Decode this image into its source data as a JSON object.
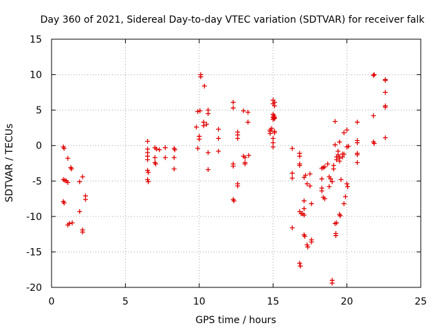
{
  "chart_data": {
    "type": "scatter",
    "title": "Day 360 of 2021, Sidereal Day-to-day VTEC variation (SDTVAR) for receiver falk",
    "xlabel": "GPS time / hours",
    "ylabel": "SDTVAR / TECUs",
    "xlim": [
      0,
      25
    ],
    "ylim": [
      -20,
      15
    ],
    "xticks": [
      0,
      5,
      10,
      15,
      20,
      25
    ],
    "yticks": [
      -20,
      -15,
      -10,
      -5,
      0,
      5,
      10,
      15
    ],
    "xtick_labels": [
      "0",
      "5",
      "10",
      "15",
      "20",
      "25"
    ],
    "ytick_labels": [
      "-20",
      "-15",
      "-10",
      "-5",
      "0",
      "5",
      "10",
      "15"
    ],
    "grid": true,
    "marker": "+",
    "color": "#e00000",
    "series": [
      {
        "name": "SDTVAR",
        "points": [
          [
            0.8,
            -0.2
          ],
          [
            0.85,
            -0.4
          ],
          [
            0.8,
            -4.8
          ],
          [
            0.9,
            -4.9
          ],
          [
            0.8,
            -7.9
          ],
          [
            0.85,
            -8.1
          ],
          [
            1.0,
            -5.0
          ],
          [
            1.1,
            -5.2
          ],
          [
            1.1,
            -1.8
          ],
          [
            1.1,
            -11.2
          ],
          [
            1.2,
            -11.0
          ],
          [
            1.3,
            -3.1
          ],
          [
            1.35,
            -3.3
          ],
          [
            1.4,
            -10.9
          ],
          [
            1.9,
            -5.1
          ],
          [
            1.9,
            -9.3
          ],
          [
            2.1,
            -4.4
          ],
          [
            2.1,
            -11.9
          ],
          [
            2.1,
            -12.2
          ],
          [
            2.3,
            -7.1
          ],
          [
            2.3,
            -7.6
          ],
          [
            6.5,
            0.6
          ],
          [
            6.5,
            -0.5
          ],
          [
            6.5,
            -1.0
          ],
          [
            6.5,
            -1.5
          ],
          [
            6.5,
            -2.0
          ],
          [
            6.5,
            -3.5
          ],
          [
            6.55,
            -3.8
          ],
          [
            6.5,
            -4.8
          ],
          [
            6.55,
            -5.1
          ],
          [
            7.0,
            -0.3
          ],
          [
            7.1,
            -0.5
          ],
          [
            7.0,
            -1.7
          ],
          [
            7.0,
            -2.4
          ],
          [
            7.05,
            -2.6
          ],
          [
            7.3,
            -0.6
          ],
          [
            7.7,
            -0.3
          ],
          [
            7.7,
            -1.7
          ],
          [
            8.3,
            -0.4
          ],
          [
            8.35,
            -0.6
          ],
          [
            8.3,
            -1.7
          ],
          [
            8.3,
            -3.3
          ],
          [
            9.8,
            2.6
          ],
          [
            9.9,
            4.8
          ],
          [
            9.9,
            -0.4
          ],
          [
            10.0,
            0.9
          ],
          [
            10.0,
            1.3
          ],
          [
            10.05,
            4.9
          ],
          [
            10.1,
            9.7
          ],
          [
            10.1,
            10.0
          ],
          [
            10.3,
            2.8
          ],
          [
            10.3,
            3.3
          ],
          [
            10.35,
            8.4
          ],
          [
            10.5,
            3.0
          ],
          [
            10.6,
            5.0
          ],
          [
            10.6,
            4.5
          ],
          [
            10.6,
            -3.4
          ],
          [
            10.6,
            -1.0
          ],
          [
            11.3,
            2.3
          ],
          [
            11.3,
            -0.8
          ],
          [
            11.3,
            1.0
          ],
          [
            12.3,
            6.1
          ],
          [
            12.3,
            5.3
          ],
          [
            12.3,
            -2.6
          ],
          [
            12.3,
            -2.9
          ],
          [
            12.3,
            -7.6
          ],
          [
            12.35,
            -7.8
          ],
          [
            12.6,
            -5.4
          ],
          [
            12.6,
            -5.7
          ],
          [
            12.6,
            1.5
          ],
          [
            12.6,
            1.0
          ],
          [
            12.6,
            1.9
          ],
          [
            13.0,
            4.9
          ],
          [
            13.0,
            -1.5
          ],
          [
            13.1,
            -1.7
          ],
          [
            13.1,
            -2.4
          ],
          [
            13.1,
            -2.6
          ],
          [
            13.3,
            4.7
          ],
          [
            13.3,
            3.3
          ],
          [
            13.35,
            -1.4
          ],
          [
            14.8,
            2.2
          ],
          [
            14.8,
            2.0
          ],
          [
            14.8,
            1.7
          ],
          [
            14.9,
            2.4
          ],
          [
            15.0,
            6.4
          ],
          [
            15.0,
            5.9
          ],
          [
            15.0,
            4.4
          ],
          [
            15.0,
            4.0
          ],
          [
            15.0,
            3.7
          ],
          [
            15.05,
            4.2
          ],
          [
            15.05,
            3.9
          ],
          [
            15.1,
            6.1
          ],
          [
            15.1,
            5.6
          ],
          [
            15.0,
            1.0
          ],
          [
            15.0,
            0.4
          ],
          [
            15.0,
            -0.2
          ],
          [
            15.1,
            2.0
          ],
          [
            15.1,
            1.8
          ],
          [
            15.1,
            4.0
          ],
          [
            15.1,
            3.8
          ],
          [
            16.3,
            -0.4
          ],
          [
            16.3,
            -3.9
          ],
          [
            16.3,
            -4.6
          ],
          [
            16.3,
            -11.6
          ],
          [
            16.8,
            -1.1
          ],
          [
            16.8,
            -1.5
          ],
          [
            16.8,
            -2.6
          ],
          [
            16.8,
            -2.8
          ],
          [
            16.8,
            -9.3
          ],
          [
            16.9,
            -9.6
          ],
          [
            16.8,
            -16.6
          ],
          [
            16.85,
            -17.0
          ],
          [
            17.0,
            -9.6
          ],
          [
            17.1,
            -7.8
          ],
          [
            17.1,
            -8.9
          ],
          [
            17.1,
            -4.5
          ],
          [
            17.1,
            -9.8
          ],
          [
            17.1,
            -12.6
          ],
          [
            17.15,
            -12.8
          ],
          [
            17.2,
            -4.2
          ],
          [
            17.3,
            -5.4
          ],
          [
            17.3,
            -14.0
          ],
          [
            17.35,
            -14.3
          ],
          [
            17.5,
            -4.0
          ],
          [
            17.5,
            -5.7
          ],
          [
            17.6,
            -13.3
          ],
          [
            17.6,
            -13.6
          ],
          [
            17.6,
            -8.2
          ],
          [
            18.3,
            -6.0
          ],
          [
            18.3,
            -6.4
          ],
          [
            18.3,
            -4.7
          ],
          [
            18.3,
            -3.2
          ],
          [
            18.4,
            -3.1
          ],
          [
            18.4,
            -7.3
          ],
          [
            18.5,
            -3.0
          ],
          [
            18.5,
            -7.5
          ],
          [
            18.7,
            -2.6
          ],
          [
            18.8,
            -4.4
          ],
          [
            18.8,
            -5.8
          ],
          [
            18.9,
            -4.7
          ],
          [
            19.0,
            -5.1
          ],
          [
            19.0,
            -19.0
          ],
          [
            19.0,
            -19.4
          ],
          [
            19.1,
            -2.8
          ],
          [
            19.1,
            -3.3
          ],
          [
            19.2,
            -11.0
          ],
          [
            19.25,
            -12.4
          ],
          [
            19.25,
            -12.7
          ],
          [
            19.2,
            3.4
          ],
          [
            19.2,
            0.1
          ],
          [
            19.3,
            -1.6
          ],
          [
            19.3,
            -2.0
          ],
          [
            19.3,
            -10.9
          ],
          [
            19.4,
            -0.8
          ],
          [
            19.4,
            -1.3
          ],
          [
            19.5,
            0.5
          ],
          [
            19.5,
            -1.8
          ],
          [
            19.5,
            -1.6
          ],
          [
            19.5,
            -2.2
          ],
          [
            19.5,
            -9.7
          ],
          [
            19.55,
            -9.9
          ],
          [
            19.6,
            -4.8
          ],
          [
            19.7,
            -1.2
          ],
          [
            19.7,
            -1.6
          ],
          [
            19.8,
            1.8
          ],
          [
            19.8,
            -1.2
          ],
          [
            19.8,
            -8.2
          ],
          [
            19.9,
            -7.2
          ],
          [
            20.0,
            -0.2
          ],
          [
            20.0,
            -5.4
          ],
          [
            20.05,
            -5.8
          ],
          [
            20.0,
            2.2
          ],
          [
            20.1,
            -0.1
          ],
          [
            20.7,
            3.3
          ],
          [
            20.7,
            0.7
          ],
          [
            20.7,
            0.4
          ],
          [
            20.7,
            -1.3
          ],
          [
            20.7,
            -1.1
          ],
          [
            20.7,
            -2.4
          ],
          [
            21.8,
            9.9
          ],
          [
            21.85,
            10.0
          ],
          [
            21.8,
            4.2
          ],
          [
            21.8,
            0.5
          ],
          [
            21.85,
            0.3
          ],
          [
            22.6,
            9.3
          ],
          [
            22.6,
            9.2
          ],
          [
            22.6,
            7.5
          ],
          [
            22.6,
            5.6
          ],
          [
            22.6,
            5.4
          ],
          [
            22.6,
            1.1
          ]
        ]
      }
    ]
  }
}
